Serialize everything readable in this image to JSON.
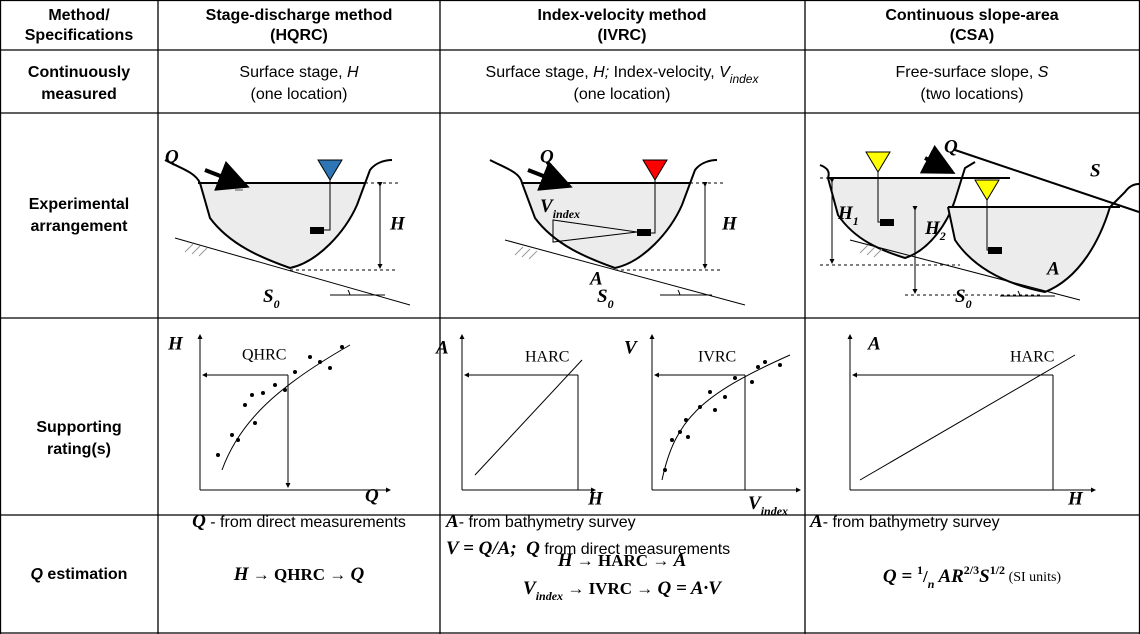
{
  "header": [
    [
      "Method/",
      "Specifications"
    ],
    [
      "Stage-discharge method",
      "(HQRC)"
    ],
    [
      "Index-velocity method",
      "(IVRC)"
    ],
    [
      "Continuous slope-area",
      "(CSA)"
    ]
  ],
  "row_labels": [
    [
      "Continuously",
      "measured"
    ],
    [
      "Experimental",
      "arrangement"
    ],
    [
      "Supporting",
      "rating(s)"
    ],
    [
      "Q",
      " estimation"
    ]
  ],
  "measured": [
    [
      [
        "Surface stage, ",
        "H"
      ],
      [
        "(one location)"
      ]
    ],
    [
      [
        "Surface stage, ",
        "H;",
        " Index-velocity, ",
        "V",
        "index"
      ],
      [
        "(one location)"
      ]
    ],
    [
      [
        "Free-surface slope, ",
        "S"
      ],
      [
        "(two locations)"
      ]
    ]
  ],
  "arrangement": {
    "hqrc": {
      "flow": "Q",
      "stage": "H",
      "slope": "S",
      "slope_sub": "0"
    },
    "ivrc": {
      "flow": "Q",
      "velocity": "V",
      "velocity_sub": "index",
      "stage": "H",
      "area": "A",
      "slope": "S",
      "slope_sub": "0"
    },
    "csa": {
      "flow": "Q",
      "surface_slope": "S",
      "stage1": "H",
      "stage1_sub": "1",
      "stage2": "H",
      "stage2_sub": "2",
      "area": "A",
      "slope": "S",
      "slope_sub": "0"
    }
  },
  "ratings": {
    "hqrc": {
      "y": "H",
      "x": "Q",
      "curve": "QHRC",
      "note": [
        "Q",
        " - from direct measurements"
      ]
    },
    "ivrc": {
      "area_plot": {
        "y": "A",
        "x": "H",
        "curve": "HARC"
      },
      "velocity_plot": {
        "y": "V",
        "x": "V",
        "x_sub": "index",
        "curve": "IVRC"
      },
      "notes": [
        [
          "A",
          "- from bathymetry survey"
        ],
        [
          "V = Q/A;  Q",
          " from direct measurements"
        ]
      ]
    },
    "csa": {
      "y": "A",
      "x": "H",
      "curve": "HARC",
      "note": [
        "A",
        "- from bathymetry survey"
      ]
    }
  },
  "estimation": {
    "hqrc": [
      "H",
      " → ",
      "QHRC",
      " → ",
      "Q"
    ],
    "ivrc": [
      [
        "H",
        " → ",
        "HARC",
        " → ",
        "A"
      ],
      [
        "V",
        "index",
        " → ",
        "IVRC",
        " → ",
        "Q = A·V"
      ]
    ],
    "csa": [
      "Q = ",
      "1",
      "/",
      "n",
      " AR",
      "2/3",
      "S",
      "1/2",
      " (SI units)"
    ]
  }
}
